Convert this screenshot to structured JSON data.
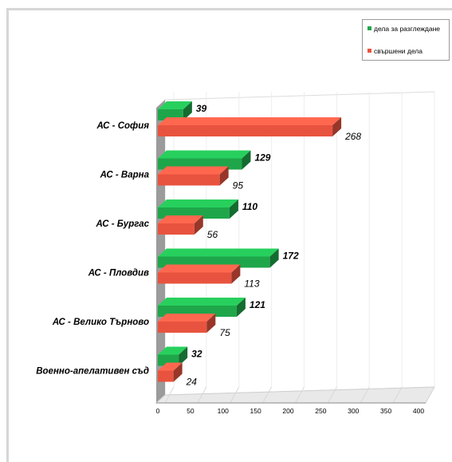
{
  "chart_data": {
    "type": "bar",
    "orientation": "horizontal",
    "style": "3d",
    "categories": [
      "АС - София",
      "АС - Варна",
      "АС - Бургас",
      "АС - Пловдив",
      "АС - Велико Търново",
      "Военно-апелативен съд"
    ],
    "series": [
      {
        "name": "дела за разглеждане",
        "color": "#1fa64a",
        "values": [
          39,
          129,
          110,
          172,
          121,
          32
        ]
      },
      {
        "name": "свършени дела",
        "color": "#e8533f",
        "values": [
          268,
          95,
          56,
          113,
          75,
          24
        ]
      }
    ],
    "bar_label_texts": [
      [
        "39",
        "129",
        "110",
        "172",
        "121",
        "32"
      ],
      [
        "268",
        "95",
        "56",
        "113",
        "75",
        "24"
      ]
    ],
    "xlim": [
      0,
      400
    ],
    "xticks": [
      "0",
      "50",
      "100",
      "150",
      "200",
      "250",
      "300",
      "350",
      "400"
    ],
    "legend_position": "top-right",
    "grid": true
  }
}
